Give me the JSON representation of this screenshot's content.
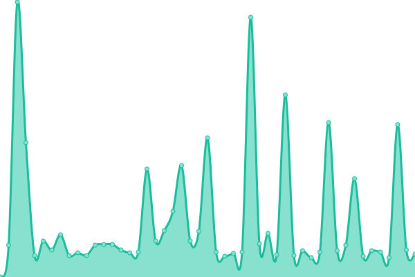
{
  "chart_data": {
    "type": "area",
    "title": "",
    "xlabel": "",
    "ylabel": "",
    "grid": false,
    "axes_visible": false,
    "ylim": [
      0,
      400
    ],
    "x": [
      0,
      1,
      2,
      3,
      4,
      5,
      6,
      7,
      8,
      9,
      10,
      11,
      12,
      13,
      14,
      15,
      16,
      17,
      18,
      19,
      20,
      21,
      22,
      23,
      24,
      25,
      26,
      27,
      28,
      29,
      30,
      31,
      32,
      33,
      34,
      35,
      36,
      37,
      38,
      39,
      40,
      41,
      42,
      43,
      44,
      45,
      46,
      47,
      48
    ],
    "values": [
      0,
      46,
      397,
      194,
      31,
      52,
      39,
      61,
      31,
      35,
      31,
      46,
      47,
      47,
      39,
      35,
      36,
      156,
      52,
      67,
      95,
      161,
      52,
      66,
      201,
      36,
      30,
      34,
      36,
      375,
      48,
      63,
      32,
      263,
      31,
      38,
      28,
      36,
      223,
      38,
      46,
      142,
      30,
      38,
      36,
      28,
      220,
      39,
      33
    ],
    "colors": {
      "line": "#1abc9c",
      "fill": "#88e1cf",
      "point": "#88e1cf"
    },
    "smooth": true
  }
}
